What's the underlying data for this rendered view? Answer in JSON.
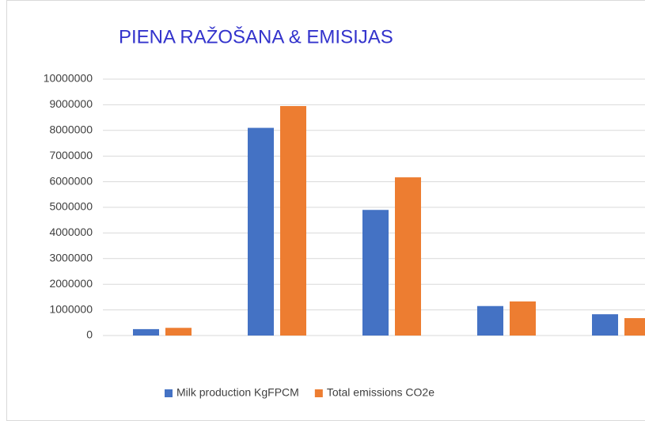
{
  "chart_data": {
    "type": "bar",
    "title": "PIENA RAŽOŠANA & EMISIJAS",
    "categories": [
      null,
      null,
      null,
      null,
      null
    ],
    "series": [
      {
        "name": "Milk production KgFPCM",
        "color": "#4472c4",
        "values": [
          250000,
          8100000,
          4900000,
          1150000,
          830000
        ]
      },
      {
        "name": "Total emissions CO2e",
        "color": "#ed7d31",
        "values": [
          300000,
          8950000,
          6170000,
          1330000,
          680000
        ]
      }
    ],
    "ylim": [
      0,
      10000000
    ],
    "yticks": [
      0,
      1000000,
      2000000,
      3000000,
      4000000,
      5000000,
      6000000,
      7000000,
      8000000,
      9000000,
      10000000
    ],
    "grid": true,
    "legend": "bottom",
    "title_color": "#3333cc"
  }
}
